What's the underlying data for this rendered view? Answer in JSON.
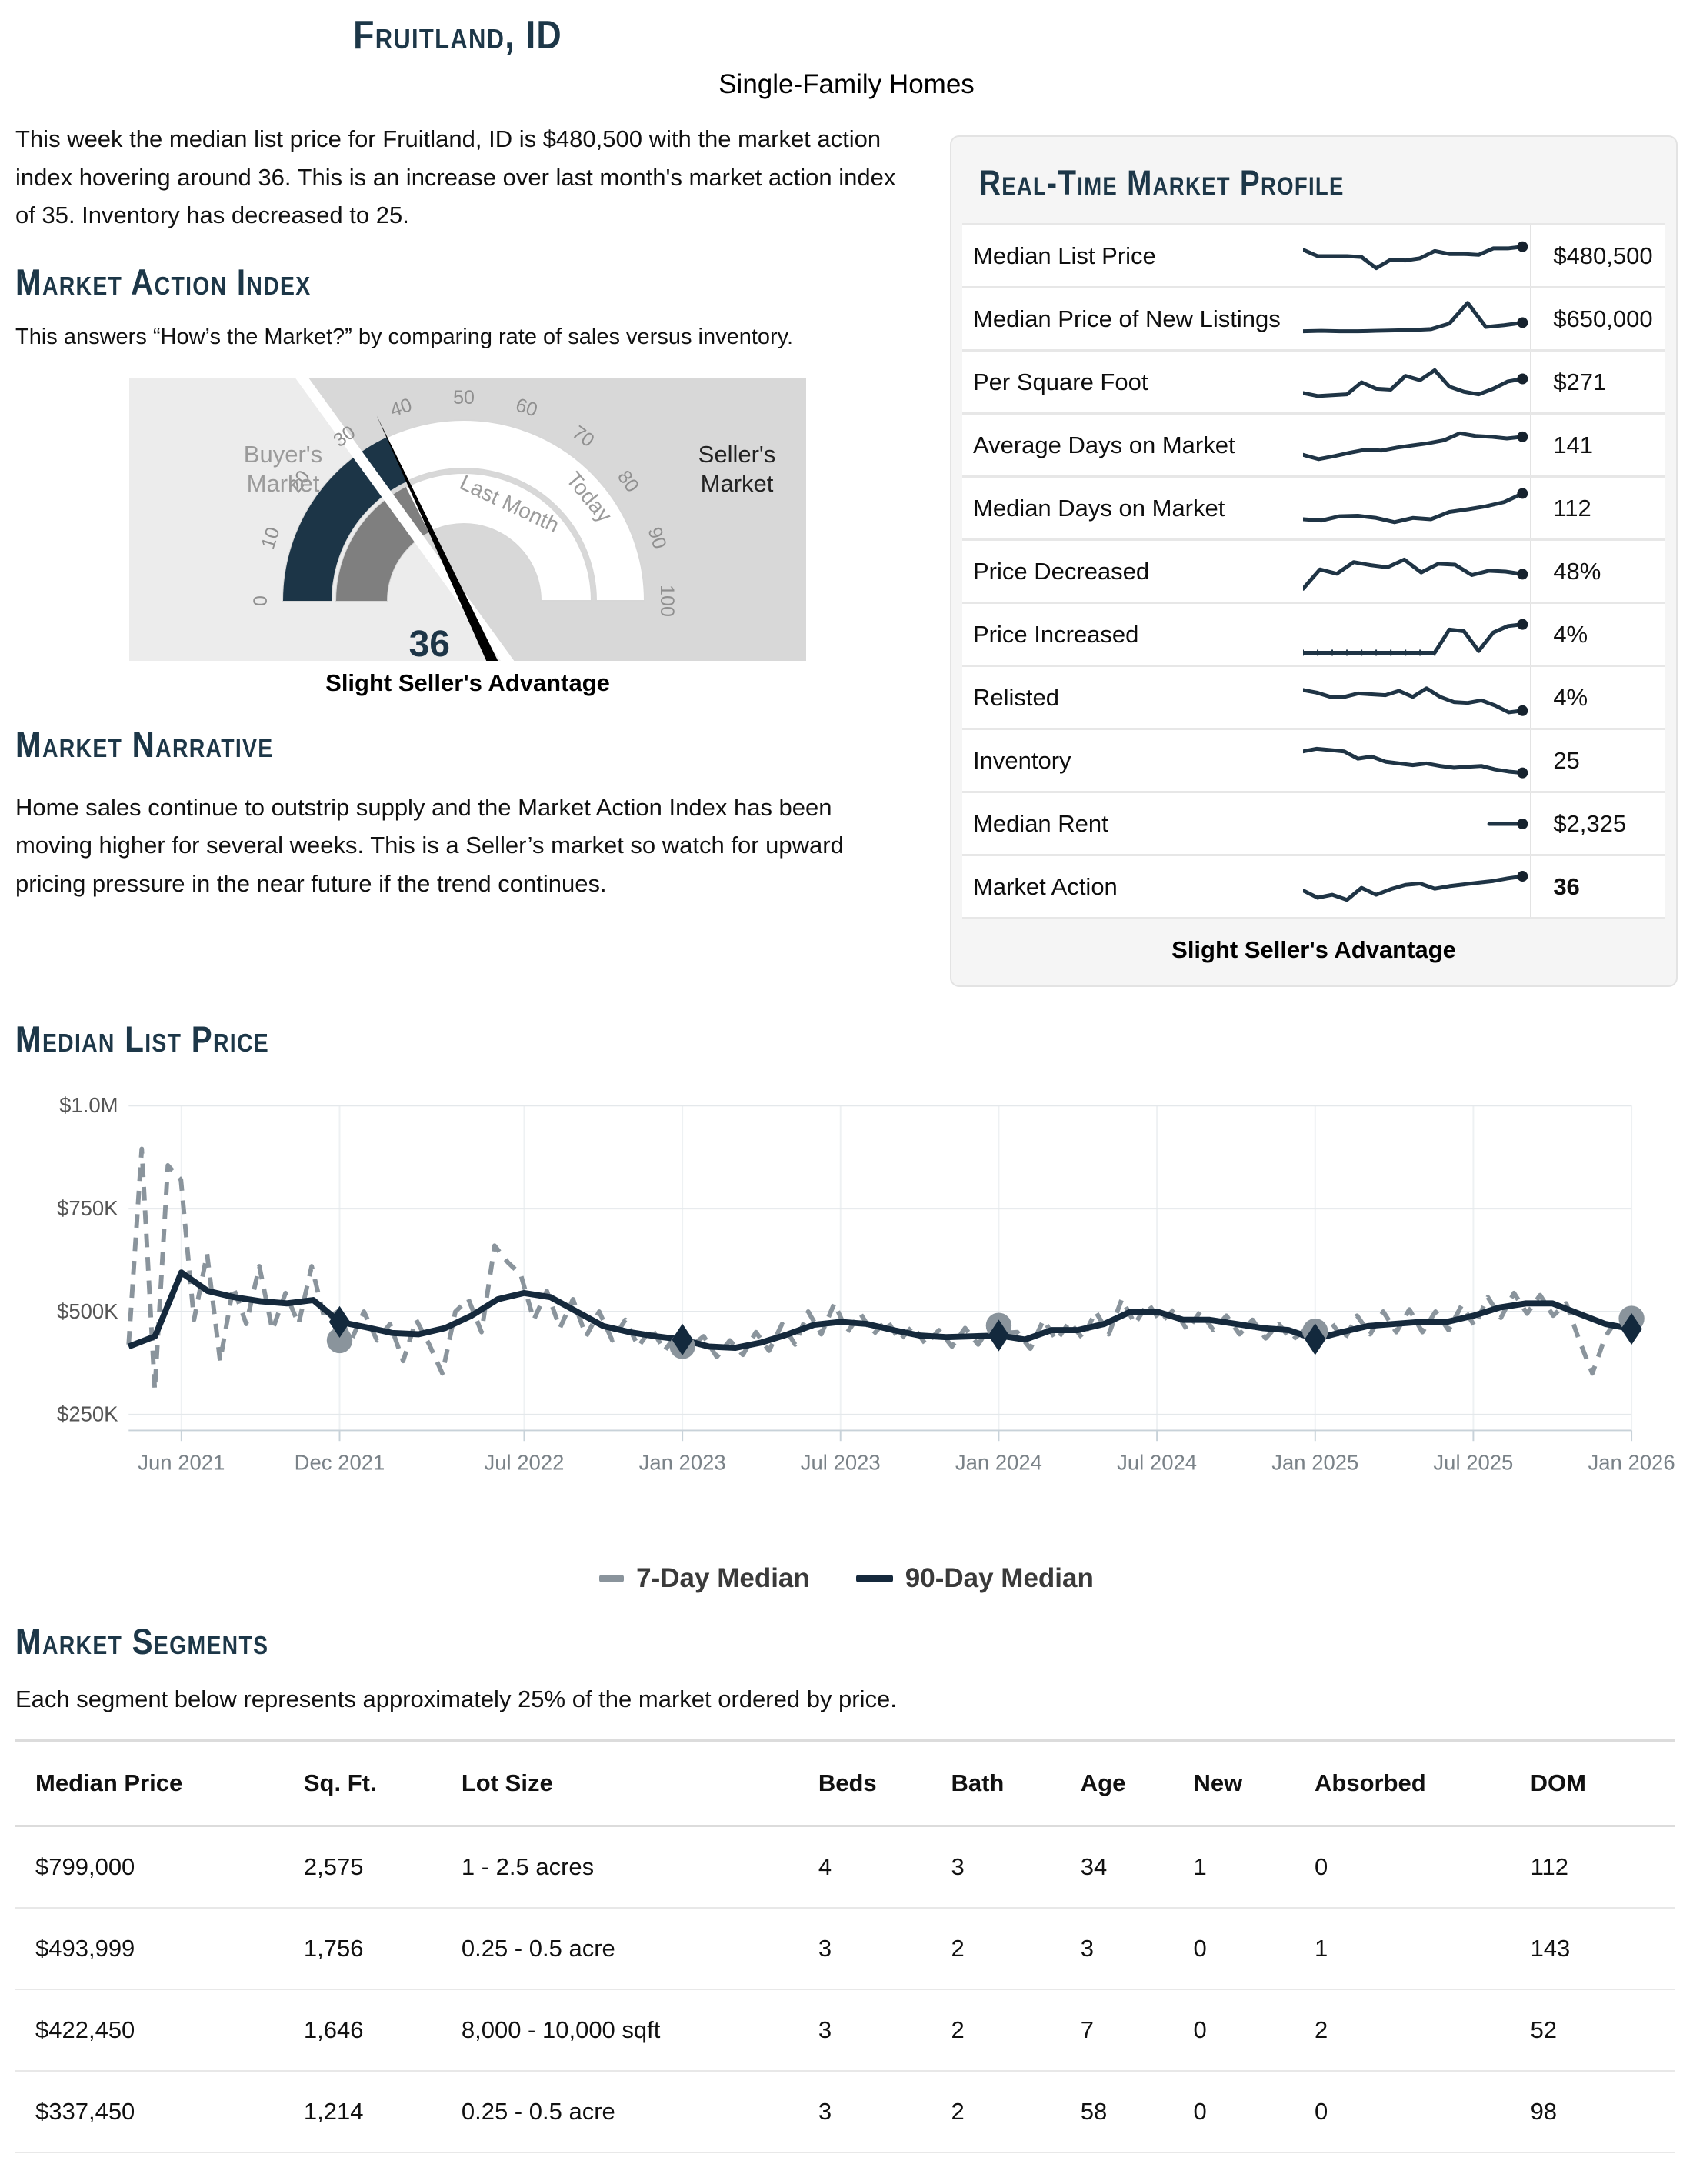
{
  "header": {
    "title": "Fruitland, ID",
    "subtitle": "Single-Family Homes"
  },
  "intro": "This week the median list price for Fruitland, ID is $480,500 with the market action index hovering around 36. This is an increase over last month's market action index of 35. Inventory has decreased to 25.",
  "market_action_index": {
    "heading": "Market Action Index",
    "description": "This answers “How’s the Market?” by comparing rate of sales versus inventory.",
    "gauge": {
      "value": 36,
      "value_label": "36",
      "last_month": 35,
      "boundary": 30,
      "min": 0,
      "max": 100,
      "tick_step": 10,
      "left_label_line1": "Buyer's",
      "left_label_line2": "Market",
      "right_label_line1": "Seller's",
      "right_label_line2": "Market",
      "inner_band_label": "Last Month",
      "outer_band_label": "Today",
      "status": "Slight Seller's Advantage",
      "colors": {
        "today_band": "#1c3547",
        "last_month_band": "#7f7f7f",
        "buyer_bg": "#ececec",
        "seller_bg": "#d8d8d8",
        "needle": "#000000",
        "value_text": "#1d3547",
        "tick_text": "#8f8f8f"
      }
    }
  },
  "market_narrative": {
    "heading": "Market Narrative",
    "text": "Home sales continue to outstrip supply and the Market Action Index has been moving higher for several weeks. This is a Seller’s market so watch for upward pricing pressure in the near future if the trend continues."
  },
  "profile": {
    "heading": "Real-Time Market Profile",
    "status": "Slight Seller's Advantage",
    "spark_color": "#1f3445",
    "rows": [
      {
        "label": "Median List Price",
        "value": "$480,500",
        "bold": false,
        "ticked": false,
        "start": 0,
        "spark": [
          65,
          50,
          50,
          50,
          48,
          22,
          42,
          40,
          45,
          62,
          55,
          55,
          53,
          68,
          68,
          72
        ]
      },
      {
        "label": "Median Price of New Listings",
        "value": "$650,000",
        "bold": false,
        "ticked": false,
        "start": 0,
        "spark": [
          22,
          23,
          22,
          22,
          23,
          24,
          25,
          27,
          40,
          88,
          32,
          36,
          42
        ]
      },
      {
        "label": "Per Square Foot",
        "value": "$271",
        "bold": false,
        "ticked": false,
        "start": 0,
        "spark": [
          25,
          18,
          20,
          22,
          50,
          35,
          33,
          65,
          55,
          78,
          40,
          28,
          22,
          35,
          52,
          58
        ]
      },
      {
        "label": "Average Days on Market",
        "value": "141",
        "bold": false,
        "ticked": false,
        "start": 0,
        "spark": [
          28,
          18,
          25,
          33,
          40,
          38,
          45,
          50,
          55,
          62,
          78,
          72,
          70,
          66,
          70
        ]
      },
      {
        "label": "Median Days on Market",
        "value": "112",
        "bold": false,
        "ticked": false,
        "start": 0,
        "spark": [
          25,
          22,
          32,
          33,
          28,
          18,
          28,
          25,
          42,
          48,
          55,
          65,
          85
        ]
      },
      {
        "label": "Price Decreased",
        "value": "48%",
        "bold": false,
        "ticked": false,
        "start": 0,
        "spark": [
          10,
          55,
          45,
          72,
          65,
          60,
          78,
          48,
          68,
          66,
          42,
          52,
          50,
          44
        ]
      },
      {
        "label": "Price Increased",
        "value": "4%",
        "bold": false,
        "ticked": true,
        "start": 0,
        "spark": [
          8,
          8,
          8,
          8,
          8,
          8,
          8,
          8,
          8,
          8,
          62,
          58,
          12,
          55,
          70,
          74
        ]
      },
      {
        "label": "Relisted",
        "value": "4%",
        "bold": false,
        "ticked": false,
        "start": 0,
        "spark": [
          68,
          62,
          52,
          52,
          60,
          58,
          56,
          66,
          52,
          72,
          52,
          40,
          38,
          44,
          32,
          16,
          20
        ]
      },
      {
        "label": "Inventory",
        "value": "25",
        "bold": false,
        "ticked": false,
        "start": 0,
        "spark": [
          72,
          78,
          75,
          72,
          55,
          60,
          48,
          44,
          40,
          44,
          38,
          34,
          36,
          38,
          30,
          25,
          22
        ]
      },
      {
        "label": "Median Rent",
        "value": "$2,325",
        "bold": false,
        "ticked": false,
        "start": 0.82,
        "spark": [
          50,
          50,
          50
        ]
      },
      {
        "label": "Market Action",
        "value": "36",
        "bold": true,
        "ticked": false,
        "start": 0,
        "spark": [
          42,
          25,
          32,
          20,
          48,
          32,
          45,
          55,
          58,
          46,
          52,
          56,
          60,
          64,
          70,
          75
        ]
      }
    ]
  },
  "chart_data": {
    "type": "line",
    "title": "Median List Price",
    "heading": "Median List Price",
    "x_unit": "months, Apr 2021 – Jan 2026",
    "ylim_k": [
      250,
      1000
    ],
    "yticks": [
      {
        "label": "$1.0M",
        "value_k": 1000
      },
      {
        "label": "$750K",
        "value_k": 750
      },
      {
        "label": "$500K",
        "value_k": 500
      },
      {
        "label": "$250K",
        "value_k": 250
      }
    ],
    "xticks": [
      {
        "label": "Jun 2021",
        "month_index": 2
      },
      {
        "label": "Dec 2021",
        "month_index": 8
      },
      {
        "label": "Jul 2022",
        "month_index": 15
      },
      {
        "label": "Jan 2023",
        "month_index": 21
      },
      {
        "label": "Jul 2023",
        "month_index": 27
      },
      {
        "label": "Jan 2024",
        "month_index": 33
      },
      {
        "label": "Jul 2024",
        "month_index": 39
      },
      {
        "label": "Jan 2025",
        "month_index": 45
      },
      {
        "label": "Jul 2025",
        "month_index": 51
      },
      {
        "label": "Jan 2026",
        "month_index": 57
      }
    ],
    "series": [
      {
        "name": "7-Day Median",
        "color": "#8a949c",
        "style": "dashed",
        "points_per_month": 2,
        "values_k": [
          420,
          895,
          310,
          855,
          820,
          480,
          640,
          380,
          560,
          470,
          610,
          455,
          545,
          470,
          610,
          480,
          500,
          428,
          500,
          430,
          470,
          380,
          480,
          420,
          350,
          500,
          530,
          450,
          660,
          620,
          590,
          480,
          550,
          460,
          530,
          440,
          500,
          430,
          480,
          415,
          460,
          405,
          448,
          415,
          440,
          390,
          430,
          395,
          450,
          405,
          470,
          420,
          500,
          445,
          520,
          450,
          495,
          445,
          480,
          430,
          465,
          420,
          455,
          415,
          460,
          420,
          468,
          448,
          450,
          410,
          480,
          430,
          475,
          435,
          500,
          445,
          530,
          470,
          520,
          475,
          505,
          455,
          500,
          455,
          490,
          445,
          480,
          435,
          470,
          430,
          455,
          450,
          475,
          430,
          490,
          445,
          500,
          450,
          505,
          450,
          500,
          455,
          515,
          465,
          535,
          485,
          545,
          495,
          540,
          490,
          520,
          430,
          350,
          440,
          485,
          482
        ]
      },
      {
        "name": "90-Day Median",
        "color": "#15293c",
        "style": "solid",
        "points_per_month": 1,
        "values_k": [
          415,
          440,
          595,
          550,
          535,
          525,
          520,
          528,
          475,
          462,
          448,
          445,
          460,
          490,
          530,
          545,
          535,
          500,
          465,
          450,
          440,
          432,
          415,
          412,
          425,
          445,
          468,
          475,
          470,
          455,
          442,
          438,
          440,
          442,
          432,
          455,
          455,
          470,
          500,
          500,
          480,
          480,
          470,
          460,
          455,
          433,
          450,
          465,
          470,
          475,
          475,
          490,
          510,
          520,
          520,
          495,
          470,
          458
        ]
      }
    ],
    "markers": {
      "month_indices": [
        8,
        21,
        33,
        45,
        57
      ],
      "d90_values_k": [
        475,
        432,
        442,
        433,
        458
      ],
      "d7_values_k": [
        430,
        416,
        466,
        452,
        483
      ]
    },
    "legend": [
      "7-Day Median",
      "90-Day Median"
    ]
  },
  "segments": {
    "heading": "Market Segments",
    "caption": "Each segment below represents approximately 25% of the market ordered by price.",
    "columns": [
      "Median Price",
      "Sq. Ft.",
      "Lot Size",
      "Beds",
      "Bath",
      "Age",
      "New",
      "Absorbed",
      "DOM"
    ],
    "rows": [
      [
        "$799,000",
        "2,575",
        "1 - 2.5 acres",
        "4",
        "3",
        "34",
        "1",
        "0",
        "112"
      ],
      [
        "$493,999",
        "1,756",
        "0.25 - 0.5 acre",
        "3",
        "2",
        "3",
        "0",
        "1",
        "143"
      ],
      [
        "$422,450",
        "1,646",
        "8,000 - 10,000 sqft",
        "3",
        "2",
        "7",
        "0",
        "2",
        "52"
      ],
      [
        "$337,450",
        "1,214",
        "0.25 - 0.5 acre",
        "3",
        "2",
        "58",
        "0",
        "0",
        "98"
      ]
    ]
  }
}
